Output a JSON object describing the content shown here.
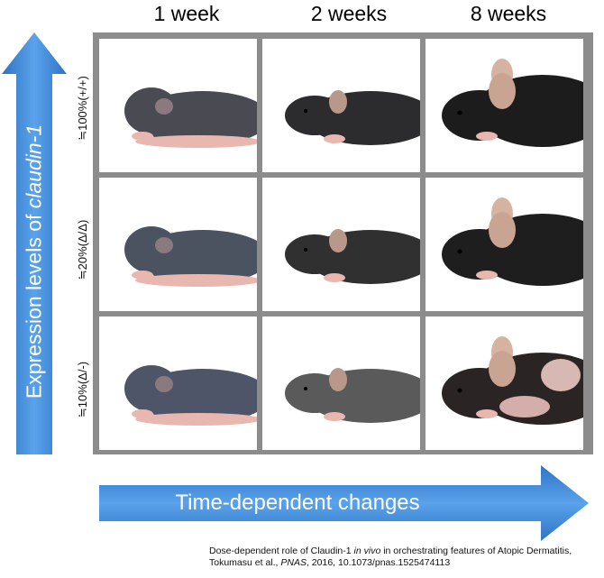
{
  "columns": [
    "1 week",
    "2 weeks",
    "8 weeks"
  ],
  "rows": [
    "≒100%(+/+)",
    "≒20%(Δ/Δ)",
    "≒10%(Δ/-)"
  ],
  "vertical_axis": {
    "prefix": "Expression levels of ",
    "gene": "claudin-1"
  },
  "horizontal_axis": {
    "label": "Time-dependent changes"
  },
  "caption": {
    "line1_a": "Dose-dependent role of Claudin-1 ",
    "line1_italic": "in vivo",
    "line1_b": " in orchestrating features of Atopic Dermatitis,",
    "line2_a": "Tokumasu et al., ",
    "line2_journal": "PNAS",
    "line2_b": ", 2016, 10.1073/pnas.1525474113"
  },
  "colors": {
    "arrow": "#3a86d6",
    "grid_border": "#8c8c8c",
    "mouse_dark": "#2a2a2a",
    "mouse_skin": "#e8b8b0"
  },
  "images": [
    [
      "mouse-pup-1wk-wildtype",
      "mouse-2wk-wildtype",
      "mouse-adult-8wk-wildtype"
    ],
    [
      "mouse-pup-1wk-20pct",
      "mouse-2wk-20pct",
      "mouse-adult-8wk-20pct"
    ],
    [
      "mouse-pup-1wk-10pct",
      "mouse-2wk-10pct",
      "mouse-adult-8wk-10pct-patchy"
    ]
  ]
}
